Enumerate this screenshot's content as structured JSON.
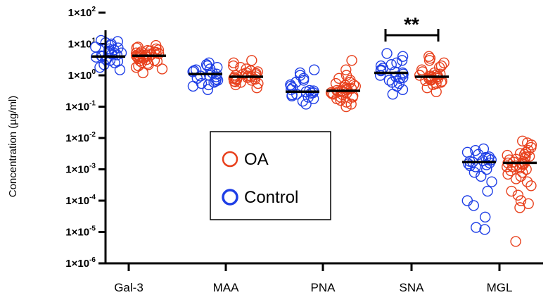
{
  "chart_data": {
    "type": "scatter",
    "xlabel": "",
    "ylabel": "Concentration (µg/ml)",
    "yscale": "log",
    "ylim": [
      1e-06,
      100
    ],
    "yticks": [
      {
        "value": 100,
        "mantissa": "1×10",
        "exp": "2"
      },
      {
        "value": 10,
        "mantissa": "1×10",
        "exp": "1"
      },
      {
        "value": 1,
        "mantissa": "1×10",
        "exp": "0"
      },
      {
        "value": 0.1,
        "mantissa": "1×10",
        "exp": "-1"
      },
      {
        "value": 0.01,
        "mantissa": "1×10",
        "exp": "-2"
      },
      {
        "value": 0.001,
        "mantissa": "1×10",
        "exp": "-3"
      },
      {
        "value": 0.0001,
        "mantissa": "1×10",
        "exp": "-4"
      },
      {
        "value": 1e-05,
        "mantissa": "1×10",
        "exp": "-5"
      },
      {
        "value": 1e-06,
        "mantissa": "1×10",
        "exp": "-6"
      }
    ],
    "categories": [
      "Gal-3",
      "MAA",
      "PNA",
      "SNA",
      "MGL"
    ],
    "series": [
      {
        "name": "Control",
        "color": "#1f3fe6",
        "medians": [
          4.0,
          1.1,
          0.3,
          1.2,
          0.0017
        ],
        "points": [
          [
            1.8,
            2.5,
            3.0,
            3.5,
            4.0,
            4.5,
            5.0,
            5.5,
            6.0,
            7.0,
            8.0,
            9.0,
            10.0,
            11.0,
            12.0,
            2.2,
            3.2,
            4.2,
            5.2,
            6.5,
            7.5,
            2.8,
            3.8,
            4.8,
            1.5,
            13.0
          ],
          [
            0.35,
            0.45,
            0.55,
            0.65,
            0.8,
            0.9,
            1.0,
            1.2,
            1.4,
            1.6,
            1.8,
            2.0,
            2.2,
            2.5,
            0.5,
            0.7,
            1.1,
            1.3,
            0.6,
            0.75,
            0.95,
            1.5
          ],
          [
            0.12,
            0.15,
            0.18,
            0.2,
            0.22,
            0.25,
            0.28,
            0.3,
            0.32,
            0.35,
            0.4,
            0.45,
            0.5,
            0.6,
            0.7,
            0.8,
            1.0,
            1.2,
            1.5,
            0.24,
            0.27,
            0.33
          ],
          [
            0.25,
            0.35,
            0.45,
            0.6,
            0.7,
            0.8,
            0.9,
            1.0,
            1.1,
            1.2,
            1.3,
            1.5,
            1.7,
            2.0,
            2.5,
            3.0,
            4.0,
            5.0,
            0.55,
            0.85,
            1.4,
            2.2
          ],
          [
            1.2e-05,
            1.4e-05,
            3e-05,
            7e-05,
            0.0001,
            0.0002,
            0.0004,
            0.0006,
            0.0008,
            0.001,
            0.0012,
            0.0014,
            0.0015,
            0.0016,
            0.0017,
            0.0018,
            0.002,
            0.0022,
            0.0025,
            0.003,
            0.0035,
            0.004,
            0.0045,
            0.0013,
            0.0019,
            0.0024
          ]
        ]
      },
      {
        "name": "OA",
        "color": "#e8401c",
        "medians": [
          4.2,
          0.9,
          0.32,
          0.9,
          0.0016
        ],
        "points": [
          [
            1.2,
            1.6,
            2.0,
            2.4,
            2.8,
            3.2,
            3.6,
            4.0,
            4.4,
            4.8,
            5.2,
            5.6,
            6.0,
            6.5,
            7.0,
            7.5,
            8.0,
            9.0,
            2.2,
            2.6,
            3.4,
            3.8,
            4.2,
            4.6,
            5.0,
            5.4,
            3.0,
            3.5,
            4.5,
            5.5,
            6.2,
            1.8,
            2.9,
            3.9,
            4.9
          ],
          [
            0.4,
            0.5,
            0.55,
            0.6,
            0.65,
            0.7,
            0.75,
            0.8,
            0.85,
            0.9,
            0.95,
            1.0,
            1.1,
            1.2,
            1.3,
            1.4,
            1.6,
            1.8,
            2.0,
            2.5,
            3.0,
            0.72,
            0.88,
            1.05,
            0.62,
            0.78,
            0.92,
            1.15
          ],
          [
            0.1,
            0.12,
            0.14,
            0.16,
            0.18,
            0.2,
            0.22,
            0.24,
            0.26,
            0.28,
            0.3,
            0.32,
            0.35,
            0.38,
            0.4,
            0.45,
            0.5,
            0.55,
            0.6,
            0.7,
            0.8,
            1.0,
            1.5,
            3.0,
            0.25,
            0.29,
            0.33,
            0.36,
            0.42,
            0.48,
            0.2,
            0.27
          ],
          [
            0.3,
            0.4,
            0.5,
            0.55,
            0.6,
            0.65,
            0.7,
            0.75,
            0.8,
            0.85,
            0.9,
            0.95,
            1.0,
            1.1,
            1.2,
            1.3,
            1.5,
            1.8,
            2.0,
            2.5,
            3.0,
            3.5,
            4.0,
            0.68,
            0.88,
            1.05,
            0.78,
            0.92
          ],
          [
            5e-06,
            6e-05,
            8e-05,
            0.0001,
            0.00015,
            0.0002,
            0.0003,
            0.0004,
            0.0005,
            0.0006,
            0.0007,
            0.0008,
            0.0009,
            0.001,
            0.0011,
            0.0012,
            0.0013,
            0.0014,
            0.0015,
            0.0016,
            0.0017,
            0.0018,
            0.002,
            0.0022,
            0.0025,
            0.0028,
            0.003,
            0.0035,
            0.004,
            0.005,
            0.006,
            0.007,
            0.008,
            0.0012,
            0.0016,
            0.0021,
            0.0026,
            0.0032
          ]
        ]
      }
    ],
    "legend": {
      "placement": "center",
      "entries": [
        {
          "label": "OA",
          "color": "#e8401c"
        },
        {
          "label": "Control",
          "color": "#1f3fe6"
        }
      ]
    },
    "significance": {
      "label": "**",
      "category": "SNA"
    }
  }
}
